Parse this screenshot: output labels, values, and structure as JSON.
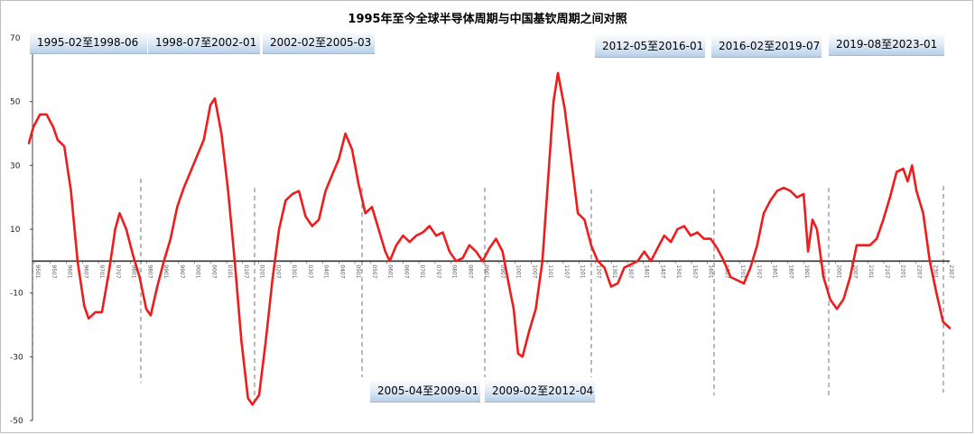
{
  "chart_data": {
    "type": "line",
    "title": "1995年至今全球半导体周期与中国基钦周期之间对照",
    "xlabel": "",
    "ylabel": "",
    "ylim": [
      -50,
      70
    ],
    "yticks": [
      -50,
      -30,
      -10,
      10,
      30,
      50,
      70
    ],
    "grid": false,
    "legend": "none",
    "line_color": "#ee1c1c",
    "divider_color": "#8c8c8c",
    "x_start": "1995-01",
    "x_end": "2023-10",
    "xtick_labels": [
      "9501",
      "9507",
      "9601",
      "9607",
      "9701",
      "9707",
      "9801",
      "9807",
      "9901",
      "9907",
      "0001",
      "0007",
      "0101",
      "0107",
      "0201",
      "0207",
      "0301",
      "0307",
      "0401",
      "0407",
      "0501",
      "0507",
      "0601",
      "0607",
      "0701",
      "0707",
      "0801",
      "0807",
      "0901",
      "0907",
      "1001",
      "1007",
      "1101",
      "1107",
      "1201",
      "1207",
      "1301",
      "1307",
      "1401",
      "1407",
      "1501",
      "1507",
      "1601",
      "1607",
      "1701",
      "1707",
      "1801",
      "1807",
      "1901",
      "1907",
      "2001",
      "2007",
      "2101",
      "2107",
      "2201",
      "2207",
      "2301",
      "2307"
    ],
    "cycles": [
      {
        "label": "1995-02至1998-06",
        "start": "1995-02",
        "end": "1998-06",
        "label_pos": "top"
      },
      {
        "label": "1998-07至2002-01",
        "start": "1998-07",
        "end": "2002-01",
        "label_pos": "top"
      },
      {
        "label": "2002-02至2005-03",
        "start": "2002-02",
        "end": "2005-03",
        "label_pos": "top"
      },
      {
        "label": "2005-04至2009-01",
        "start": "2005-04",
        "end": "2009-01",
        "label_pos": "bottom"
      },
      {
        "label": "2009-02至2012-04",
        "start": "2009-02",
        "end": "2012-04",
        "label_pos": "bottom"
      },
      {
        "label": "2012-05至2016-01",
        "start": "2012-05",
        "end": "2016-01",
        "label_pos": "top"
      },
      {
        "label": "2016-02至2019-07",
        "start": "2016-02",
        "end": "2019-07",
        "label_pos": "top"
      },
      {
        "label": "2019-08至2023-01",
        "start": "2019-08",
        "end": "2023-01",
        "label_pos": "top"
      }
    ],
    "series": [
      {
        "points": [
          [
            "1995-01",
            37
          ],
          [
            "1995-03",
            42
          ],
          [
            "1995-06",
            46
          ],
          [
            "1995-09",
            46
          ],
          [
            "1995-12",
            42
          ],
          [
            "1996-02",
            38
          ],
          [
            "1996-05",
            36
          ],
          [
            "1996-08",
            22
          ],
          [
            "1996-11",
            0
          ],
          [
            "1997-02",
            -14
          ],
          [
            "1997-04",
            -18
          ],
          [
            "1997-07",
            -16
          ],
          [
            "1997-10",
            -16
          ],
          [
            "1998-01",
            -4
          ],
          [
            "1998-04",
            10
          ],
          [
            "1998-06",
            15
          ],
          [
            "1998-09",
            10
          ],
          [
            "1998-12",
            2
          ],
          [
            "1999-03",
            -5
          ],
          [
            "1999-06",
            -15
          ],
          [
            "1999-08",
            -17
          ],
          [
            "1999-11",
            -8
          ],
          [
            "2000-02",
            0
          ],
          [
            "2000-05",
            7
          ],
          [
            "2000-08",
            17
          ],
          [
            "2000-11",
            23
          ],
          [
            "2001-02",
            28
          ],
          [
            "2001-05",
            33
          ],
          [
            "2001-08",
            38
          ],
          [
            "2001-11",
            49
          ],
          [
            "2002-01",
            51
          ],
          [
            "2002-04",
            40
          ],
          [
            "2002-07",
            22
          ],
          [
            "2002-10",
            0
          ],
          [
            "2003-01",
            -25
          ],
          [
            "2003-04",
            -43
          ],
          [
            "2003-06",
            -45
          ],
          [
            "2003-09",
            -42
          ],
          [
            "2003-12",
            -25
          ],
          [
            "2004-03",
            -6
          ],
          [
            "2004-06",
            10
          ],
          [
            "2004-09",
            19
          ],
          [
            "2004-12",
            21
          ],
          [
            "2005-03",
            22
          ],
          [
            "2005-06",
            14
          ],
          [
            "2005-09",
            11
          ],
          [
            "2005-12",
            13
          ],
          [
            "2006-03",
            22
          ],
          [
            "2006-06",
            27
          ],
          [
            "2006-09",
            32
          ],
          [
            "2006-12",
            40
          ],
          [
            "2007-03",
            35
          ],
          [
            "2007-06",
            24
          ],
          [
            "2007-09",
            15
          ],
          [
            "2007-12",
            17
          ],
          [
            "2008-03",
            10
          ],
          [
            "2008-06",
            3
          ],
          [
            "2008-08",
            0
          ],
          [
            "2008-11",
            5
          ],
          [
            "2009-02",
            8
          ],
          [
            "2009-05",
            6
          ],
          [
            "2009-08",
            8
          ],
          [
            "2009-11",
            9
          ],
          [
            "2010-02",
            11
          ],
          [
            "2010-05",
            8
          ],
          [
            "2010-08",
            9
          ],
          [
            "2010-11",
            3
          ],
          [
            "2011-02",
            0
          ],
          [
            "2011-05",
            1
          ],
          [
            "2011-08",
            5
          ],
          [
            "2011-11",
            3
          ],
          [
            "2012-02",
            0
          ],
          [
            "2012-05",
            4
          ],
          [
            "2012-08",
            7
          ],
          [
            "2012-11",
            3
          ],
          [
            "2013-02",
            -8
          ],
          [
            "2013-04",
            -15
          ],
          [
            "2013-06",
            -29
          ],
          [
            "2013-08",
            -30
          ],
          [
            "2013-11",
            -22
          ],
          [
            "2014-02",
            -15
          ],
          [
            "2014-05",
            0
          ],
          [
            "2014-08",
            30
          ],
          [
            "2014-10",
            50
          ],
          [
            "2014-12",
            59
          ],
          [
            "2015-03",
            48
          ],
          [
            "2015-06",
            32
          ],
          [
            "2015-09",
            15
          ],
          [
            "2015-12",
            13
          ],
          [
            "2016-03",
            5
          ],
          [
            "2016-06",
            0
          ],
          [
            "2016-09",
            -2
          ],
          [
            "2016-12",
            -8
          ],
          [
            "2017-03",
            -7
          ],
          [
            "2017-06",
            -2
          ],
          [
            "2017-09",
            -1
          ],
          [
            "2017-12",
            0
          ],
          [
            "2018-03",
            3
          ],
          [
            "2018-06",
            0
          ],
          [
            "2018-09",
            4
          ],
          [
            "2018-12",
            8
          ],
          [
            "2019-03",
            6
          ],
          [
            "2019-06",
            10
          ],
          [
            "2019-09",
            11
          ],
          [
            "2019-12",
            8
          ],
          [
            "2020-03",
            9
          ],
          [
            "2020-06",
            7
          ],
          [
            "2020-09",
            7
          ],
          [
            "2020-12",
            4
          ],
          [
            "2021-03",
            0
          ],
          [
            "2021-06",
            -5
          ],
          [
            "2021-09",
            -6
          ],
          [
            "2021-12",
            -7
          ],
          [
            "2022-03",
            -2
          ],
          [
            "2022-06",
            5
          ],
          [
            "2022-09",
            15
          ],
          [
            "2022-12",
            19
          ],
          [
            "2023-03",
            22
          ],
          [
            "2023-06",
            23
          ],
          [
            "2023-09",
            22
          ],
          [
            "2023-12",
            20
          ],
          [
            "2024-03",
            21
          ],
          [
            "2024-05",
            3
          ],
          [
            "2024-07",
            13
          ],
          [
            "2024-09",
            10
          ],
          [
            "2024-12",
            -5
          ],
          [
            "2025-03",
            -12
          ],
          [
            "2025-06",
            -15
          ],
          [
            "2025-09",
            -12
          ],
          [
            "2025-12",
            -5
          ],
          [
            "2026-03",
            5
          ],
          [
            "2026-06",
            5
          ],
          [
            "2026-09",
            5
          ],
          [
            "2026-12",
            7
          ],
          [
            "2027-03",
            13
          ],
          [
            "2027-06",
            20
          ],
          [
            "2027-09",
            28
          ],
          [
            "2027-12",
            29
          ],
          [
            "2028-02",
            25
          ],
          [
            "2028-04",
            30
          ],
          [
            "2028-06",
            22
          ],
          [
            "2028-09",
            15
          ],
          [
            "2028-12",
            0
          ],
          [
            "2029-03",
            -10
          ],
          [
            "2029-06",
            -19
          ],
          [
            "2029-09",
            -21
          ]
        ]
      }
    ]
  }
}
